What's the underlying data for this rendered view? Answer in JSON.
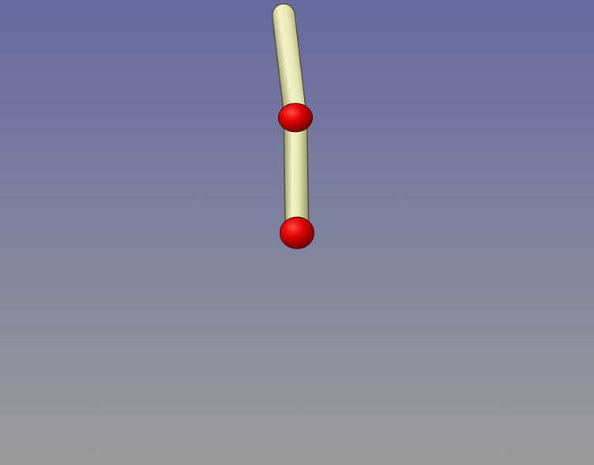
{
  "viewport": {
    "background_top": "#6769a0",
    "background_bottom": "#9b9b9b"
  },
  "model": {
    "segment_color": "#e6e6b4",
    "segment_dark": "#8c8c5a",
    "joint_color": "#e10000",
    "joint_dark": "#6e0000",
    "parts": [
      "upper-segment",
      "lower-segment",
      "middle-joint",
      "end-joint"
    ]
  }
}
